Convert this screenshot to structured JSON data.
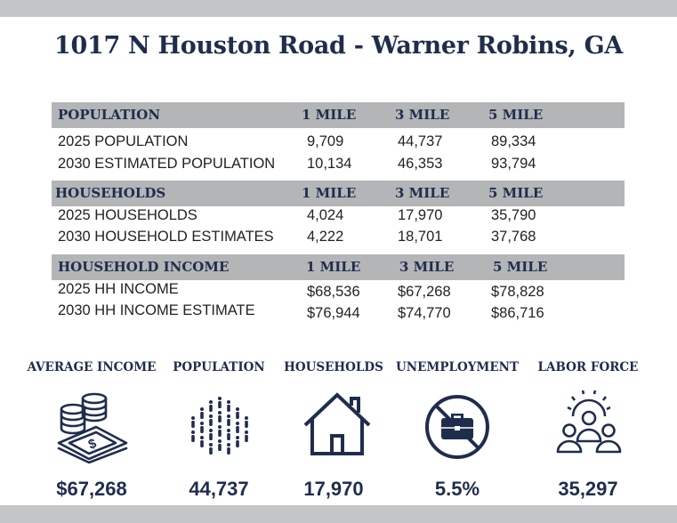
{
  "title": "1017 N Houston Road - Warner Robins, GA",
  "sections": [
    {
      "heading": "POPULATION",
      "columns": [
        "1 MILE",
        "3 MILE",
        "5 MILE"
      ],
      "rows": [
        {
          "label": "2025 POPULATION",
          "values": [
            "9,709",
            "44,737",
            "89,334"
          ]
        },
        {
          "label": "2030 ESTIMATED POPULATION",
          "values": [
            "10,134",
            "46,353",
            "93,794"
          ]
        }
      ]
    },
    {
      "heading": "HOUSEHOLDS",
      "columns": [
        "1 MILE",
        "3 MILE",
        "5 MILE"
      ],
      "rows": [
        {
          "label": "2025 HOUSEHOLDS",
          "values": [
            "4,024",
            "17,970",
            "35,790"
          ]
        },
        {
          "label": "2030 HOUSEHOLD ESTIMATES",
          "values": [
            "4,222",
            "18,701",
            "37,768"
          ]
        }
      ]
    },
    {
      "heading": "HOUSEHOLD INCOME",
      "columns": [
        "1 MILE",
        "3 MILE",
        "5 MILE"
      ],
      "rows": [
        {
          "label": "2025 HH INCOME",
          "values": [
            "$68,536",
            "$67,268",
            "$78,828"
          ]
        },
        {
          "label": "2030 HH INCOME ESTIMATE",
          "values": [
            "$76,944",
            "$74,770",
            "$86,716"
          ]
        }
      ]
    }
  ],
  "stats": [
    {
      "label": "AVERAGE INCOME",
      "value": "$67,268",
      "icon": "money-stack-icon"
    },
    {
      "label": "POPULATION",
      "value": "44,737",
      "icon": "people-circle-icon"
    },
    {
      "label": "HOUSEHOLDS",
      "value": "17,970",
      "icon": "house-icon"
    },
    {
      "label": "UNEMPLOYMENT",
      "value": "5.5%",
      "icon": "no-briefcase-icon"
    },
    {
      "label": "LABOR FORCE",
      "value": "35,297",
      "icon": "team-gear-icon"
    }
  ],
  "colors": {
    "navy": "#1f2d4d",
    "header_gray": "#b4b5b7",
    "band_gray": "#c4c5c7"
  }
}
